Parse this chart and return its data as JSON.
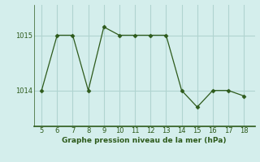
{
  "x": [
    5,
    6,
    7,
    8,
    9,
    10,
    11,
    12,
    13,
    14,
    15,
    16,
    17,
    18
  ],
  "y": [
    1014.0,
    1015.0,
    1015.0,
    1014.0,
    1015.15,
    1015.0,
    1015.0,
    1015.0,
    1015.0,
    1014.0,
    1013.7,
    1014.0,
    1014.0,
    1013.9
  ],
  "line_color": "#2d5a1b",
  "marker_color": "#2d5a1b",
  "bg_color": "#d4eeec",
  "grid_color": "#b0d4d0",
  "xlabel": "Graphe pression niveau de la mer (hPa)",
  "xlabel_color": "#2d5a1b",
  "tick_color": "#2d5a1b",
  "yticks": [
    1014,
    1015
  ],
  "ylim": [
    1013.35,
    1015.55
  ],
  "xlim": [
    4.5,
    18.7
  ],
  "xticks": [
    5,
    6,
    7,
    8,
    9,
    10,
    11,
    12,
    13,
    14,
    15,
    16,
    17,
    18
  ],
  "bottom_spine_color": "#2d5a1b",
  "left_spine_color": "#2d5a1b"
}
